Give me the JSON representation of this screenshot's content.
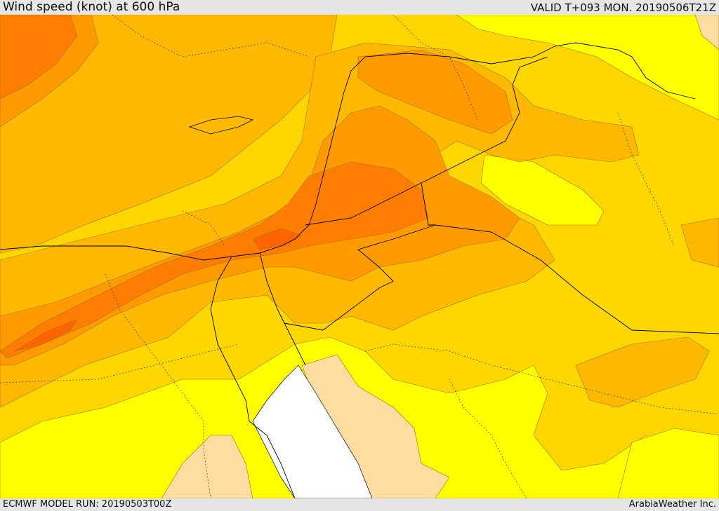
{
  "header": {
    "title": "Wind speed (knot) at 600 hPa",
    "valid_time": "VALID T+093 MON. 20190506T21Z"
  },
  "footer": {
    "model_run": "ECMWF MODEL RUN: 20190503T00Z",
    "credit": "ArabiaWeather Inc."
  },
  "map": {
    "field": "wind-speed-600hPa",
    "colors": {
      "lowest": "#ffdca0",
      "low": "#ffff00",
      "medium": "#ffd700",
      "medium_high": "#ffb900",
      "high": "#ff9b00",
      "very_high": "#ff7d00",
      "extreme": "#ff6400",
      "sea_no_data": "#ffffff"
    }
  }
}
